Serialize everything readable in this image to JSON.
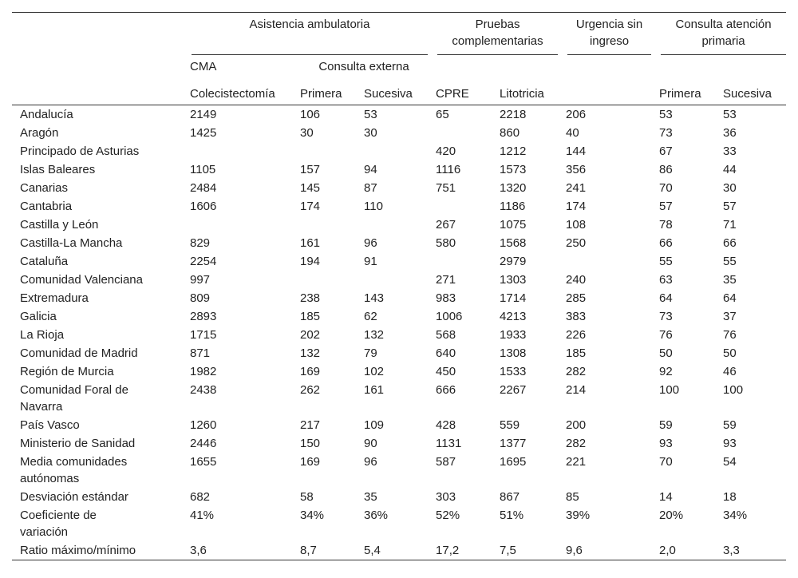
{
  "header": {
    "groups": [
      "Asistencia ambulatoria",
      "Pruebas complementarias",
      "Urgencia sin ingreso",
      "Consulta atención primaria"
    ],
    "subgroups": [
      "CMA",
      "Consulta externa"
    ],
    "columns": [
      "Colecistectomía",
      "Primera",
      "Sucesiva",
      "CPRE",
      "Litotricia",
      null,
      "Primera",
      "Sucesiva"
    ]
  },
  "rows": [
    {
      "label": "Andalucía",
      "values": [
        "2149",
        "106",
        "53",
        "65",
        "2218",
        "206",
        "53",
        "53"
      ]
    },
    {
      "label": "Aragón",
      "values": [
        "1425",
        "30",
        "30",
        null,
        "860",
        "40",
        "73",
        "36"
      ]
    },
    {
      "label": "Principado de Asturias",
      "values": [
        null,
        null,
        null,
        "420",
        "1212",
        "144",
        "67",
        "33"
      ]
    },
    {
      "label": "Islas Baleares",
      "values": [
        "1105",
        "157",
        "94",
        "1116",
        "1573",
        "356",
        "86",
        "44"
      ]
    },
    {
      "label": "Canarias",
      "values": [
        "2484",
        "145",
        "87",
        "751",
        "1320",
        "241",
        "70",
        "30"
      ]
    },
    {
      "label": "Cantabria",
      "values": [
        "1606",
        "174",
        "110",
        null,
        "1186",
        "174",
        "57",
        "57"
      ]
    },
    {
      "label": "Castilla y León",
      "values": [
        null,
        null,
        null,
        "267",
        "1075",
        "108",
        "78",
        "71"
      ]
    },
    {
      "label": "Castilla-La Mancha",
      "values": [
        "829",
        "161",
        "96",
        "580",
        "1568",
        "250",
        "66",
        "66"
      ]
    },
    {
      "label": "Cataluña",
      "values": [
        "2254",
        "194",
        "91",
        null,
        "2979",
        null,
        "55",
        "55"
      ]
    },
    {
      "label": "Comunidad Valenciana",
      "values": [
        "997",
        null,
        null,
        "271",
        "1303",
        "240",
        "63",
        "35"
      ]
    },
    {
      "label": "Extremadura",
      "values": [
        "809",
        "238",
        "143",
        "983",
        "1714",
        "285",
        "64",
        "64"
      ]
    },
    {
      "label": "Galicia",
      "values": [
        "2893",
        "185",
        "62",
        "1006",
        "4213",
        "383",
        "73",
        "37"
      ]
    },
    {
      "label": "La Rioja",
      "values": [
        "1715",
        "202",
        "132",
        "568",
        "1933",
        "226",
        "76",
        "76"
      ]
    },
    {
      "label": "Comunidad de Madrid",
      "values": [
        "871",
        "132",
        "79",
        "640",
        "1308",
        "185",
        "50",
        "50"
      ]
    },
    {
      "label": "Región de Murcia",
      "values": [
        "1982",
        "169",
        "102",
        "450",
        "1533",
        "282",
        "92",
        "46"
      ]
    },
    {
      "label": "Comunidad Foral de Navarra",
      "values": [
        "2438",
        "262",
        "161",
        "666",
        "2267",
        "214",
        "100",
        "100"
      ]
    },
    {
      "label": "País Vasco",
      "values": [
        "1260",
        "217",
        "109",
        "428",
        "559",
        "200",
        "59",
        "59"
      ]
    },
    {
      "label": "Ministerio de Sanidad",
      "values": [
        "2446",
        "150",
        "90",
        "1131",
        "1377",
        "282",
        "93",
        "93"
      ]
    },
    {
      "label": "Media comunidades autónomas",
      "values": [
        "1655",
        "169",
        "96",
        "587",
        "1695",
        "221",
        "70",
        "54"
      ]
    },
    {
      "label": "Desviación estándar",
      "values": [
        "682",
        "58",
        "35",
        "303",
        "867",
        "85",
        "14",
        "18"
      ]
    },
    {
      "label": "Coeficiente de variación",
      "values": [
        "41%",
        "34%",
        "36%",
        "52%",
        "51%",
        "39%",
        "20%",
        "34%"
      ]
    },
    {
      "label": "Ratio máximo/mínimo",
      "values": [
        "3,6",
        "8,7",
        "5,4",
        "17,2",
        "7,5",
        "9,6",
        "2,0",
        "3,3"
      ]
    }
  ]
}
